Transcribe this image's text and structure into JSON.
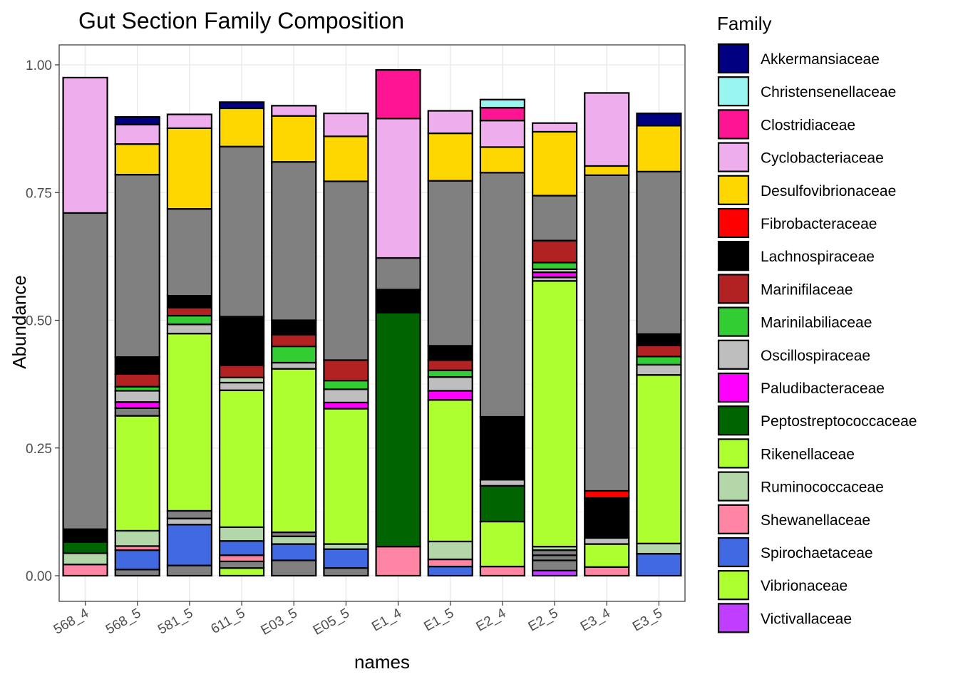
{
  "chart_data": {
    "type": "bar",
    "stacked": true,
    "title": "Gut Section Family Composition",
    "xlabel": "names",
    "ylabel": "Abundance",
    "ylim": [
      0,
      1.0
    ],
    "y_ticks": [
      "0.00",
      "0.25",
      "0.50",
      "0.75",
      "1.00"
    ],
    "grid": true,
    "legend_title": "Family",
    "legend_position": "right",
    "categories": [
      "568_4",
      "568_5",
      "581_5",
      "611_5",
      "E03_5",
      "E05_5",
      "E1_4",
      "E1_5",
      "E2_4",
      "E2_5",
      "E3_4",
      "E3_5"
    ],
    "legend": [
      {
        "name": "Akkermansiaceae",
        "color": "#000080"
      },
      {
        "name": "Christensenellaceae",
        "color": "#98F5F0"
      },
      {
        "name": "Clostridiaceae",
        "color": "#FF1493"
      },
      {
        "name": "Cyclobacteriaceae",
        "color": "#EEAEEE"
      },
      {
        "name": "Desulfovibrionaceae",
        "color": "#FFD700"
      },
      {
        "name": "Fibrobacteraceae",
        "color": "#FF0000"
      },
      {
        "name": "Lachnospiraceae",
        "color": "#000000"
      },
      {
        "name": "Marinifilaceae",
        "color": "#B22222"
      },
      {
        "name": "Marinilabiliaceae",
        "color": "#32CD32"
      },
      {
        "name": "Oscillospiraceae",
        "color": "#BEBEBE"
      },
      {
        "name": "Paludibacteraceae",
        "color": "#FF00FF"
      },
      {
        "name": "Peptostreptococcaceae",
        "color": "#006400"
      },
      {
        "name": "Rikenellaceae",
        "color": "#ADFF2F"
      },
      {
        "name": "Ruminococcaceae",
        "color": "#B4D7AA"
      },
      {
        "name": "Shewanellaceae",
        "color": "#FF85A5"
      },
      {
        "name": "Spirochaetaceae",
        "color": "#4169E1"
      },
      {
        "name": "Vibrionaceae",
        "color": "#ADFF2F"
      },
      {
        "name": "Victivallaceae",
        "color": "#BF3EFF"
      }
    ],
    "other_color": "#808080",
    "segments_note_unlabeled_gray": "Unlisted gray segments drawn in grey",
    "stacks": [
      {
        "category": "568_4",
        "segments": [
          {
            "family": "Shewanellaceae",
            "value": 0.022
          },
          {
            "family": "Ruminococcaceae",
            "value": 0.022
          },
          {
            "family": "Peptostreptococcaceae",
            "value": 0.022
          },
          {
            "family": "Lachnospiraceae",
            "value": 0.025
          },
          {
            "family": "Other",
            "value": 0.619
          },
          {
            "family": "Cyclobacteriaceae",
            "value": 0.265
          }
        ]
      },
      {
        "category": "568_5",
        "segments": [
          {
            "family": "Other",
            "value": 0.012
          },
          {
            "family": "Spirochaetaceae",
            "value": 0.038
          },
          {
            "family": "Shewanellaceae",
            "value": 0.008
          },
          {
            "family": "Ruminococcaceae",
            "value": 0.03
          },
          {
            "family": "Rikenellaceae",
            "value": 0.225
          },
          {
            "family": "Other",
            "value": 0.015
          },
          {
            "family": "Paludibacteraceae",
            "value": 0.012
          },
          {
            "family": "Oscillospiraceae",
            "value": 0.022
          },
          {
            "family": "Marinilabiliaceae",
            "value": 0.008
          },
          {
            "family": "Marinifilaceae",
            "value": 0.025
          },
          {
            "family": "Lachnospiraceae",
            "value": 0.033
          },
          {
            "family": "Other",
            "value": 0.357
          },
          {
            "family": "Desulfovibrionaceae",
            "value": 0.06
          },
          {
            "family": "Cyclobacteriaceae",
            "value": 0.038
          },
          {
            "family": "Akkermansiaceae",
            "value": 0.015
          }
        ]
      },
      {
        "category": "581_5",
        "segments": [
          {
            "family": "Other",
            "value": 0.02
          },
          {
            "family": "Spirochaetaceae",
            "value": 0.08
          },
          {
            "family": "Oscillospiraceae",
            "value": 0.012
          },
          {
            "family": "Other",
            "value": 0.015
          },
          {
            "family": "Rikenellaceae",
            "value": 0.347
          },
          {
            "family": "Oscillospiraceae",
            "value": 0.018
          },
          {
            "family": "Marinilabiliaceae",
            "value": 0.017
          },
          {
            "family": "Marinifilaceae",
            "value": 0.016
          },
          {
            "family": "Lachnospiraceae",
            "value": 0.023
          },
          {
            "family": "Other",
            "value": 0.17
          },
          {
            "family": "Desulfovibrionaceae",
            "value": 0.158
          },
          {
            "family": "Cyclobacteriaceae",
            "value": 0.027
          }
        ]
      },
      {
        "category": "611_5",
        "segments": [
          {
            "family": "Vibrionaceae",
            "value": 0.015
          },
          {
            "family": "Other",
            "value": 0.013
          },
          {
            "family": "Shewanellaceae",
            "value": 0.012
          },
          {
            "family": "Spirochaetaceae",
            "value": 0.028
          },
          {
            "family": "Ruminococcaceae",
            "value": 0.027
          },
          {
            "family": "Rikenellaceae",
            "value": 0.268
          },
          {
            "family": "Oscillospiraceae",
            "value": 0.015
          },
          {
            "family": "Ruminococcaceae",
            "value": 0.01
          },
          {
            "family": "Marinifilaceae",
            "value": 0.024
          },
          {
            "family": "Lachnospiraceae",
            "value": 0.095
          },
          {
            "family": "Other",
            "value": 0.333
          },
          {
            "family": "Desulfovibrionaceae",
            "value": 0.075
          },
          {
            "family": "Akkermansiaceae",
            "value": 0.012
          }
        ]
      },
      {
        "category": "E03_5",
        "segments": [
          {
            "family": "Other",
            "value": 0.03
          },
          {
            "family": "Spirochaetaceae",
            "value": 0.032
          },
          {
            "family": "Ruminococcaceae",
            "value": 0.015
          },
          {
            "family": "Other",
            "value": 0.008
          },
          {
            "family": "Rikenellaceae",
            "value": 0.32
          },
          {
            "family": "Oscillospiraceae",
            "value": 0.012
          },
          {
            "family": "Marinilabiliaceae",
            "value": 0.032
          },
          {
            "family": "Marinifilaceae",
            "value": 0.023
          },
          {
            "family": "Lachnospiraceae",
            "value": 0.028
          },
          {
            "family": "Other",
            "value": 0.31
          },
          {
            "family": "Desulfovibrionaceae",
            "value": 0.09
          },
          {
            "family": "Cyclobacteriaceae",
            "value": 0.02
          }
        ]
      },
      {
        "category": "E05_5",
        "segments": [
          {
            "family": "Other",
            "value": 0.015
          },
          {
            "family": "Spirochaetaceae",
            "value": 0.037
          },
          {
            "family": "Ruminococcaceae",
            "value": 0.01
          },
          {
            "family": "Rikenellaceae",
            "value": 0.265
          },
          {
            "family": "Paludibacteraceae",
            "value": 0.012
          },
          {
            "family": "Oscillospiraceae",
            "value": 0.026
          },
          {
            "family": "Marinilabiliaceae",
            "value": 0.017
          },
          {
            "family": "Marinifilaceae",
            "value": 0.04
          },
          {
            "family": "Other",
            "value": 0.35
          },
          {
            "family": "Desulfovibrionaceae",
            "value": 0.088
          },
          {
            "family": "Cyclobacteriaceae",
            "value": 0.045
          }
        ]
      },
      {
        "category": "E1_4",
        "segments": [
          {
            "family": "Shewanellaceae",
            "value": 0.057
          },
          {
            "family": "Peptostreptococcaceae",
            "value": 0.458
          },
          {
            "family": "Lachnospiraceae",
            "value": 0.045
          },
          {
            "family": "Other",
            "value": 0.062
          },
          {
            "family": "Cyclobacteriaceae",
            "value": 0.273
          },
          {
            "family": "Clostridiaceae",
            "value": 0.095
          }
        ]
      },
      {
        "category": "E1_5",
        "segments": [
          {
            "family": "Spirochaetaceae",
            "value": 0.018
          },
          {
            "family": "Shewanellaceae",
            "value": 0.014
          },
          {
            "family": "Ruminococcaceae",
            "value": 0.035
          },
          {
            "family": "Rikenellaceae",
            "value": 0.277
          },
          {
            "family": "Paludibacteraceae",
            "value": 0.018
          },
          {
            "family": "Oscillospiraceae",
            "value": 0.027
          },
          {
            "family": "Marinilabiliaceae",
            "value": 0.013
          },
          {
            "family": "Marinifilaceae",
            "value": 0.02
          },
          {
            "family": "Lachnospiraceae",
            "value": 0.028
          },
          {
            "family": "Other",
            "value": 0.323
          },
          {
            "family": "Desulfovibrionaceae",
            "value": 0.093
          },
          {
            "family": "Cyclobacteriaceae",
            "value": 0.044
          }
        ]
      },
      {
        "category": "E2_4",
        "segments": [
          {
            "family": "Shewanellaceae",
            "value": 0.018
          },
          {
            "family": "Vibrionaceae",
            "value": 0.088
          },
          {
            "family": "Peptostreptococcaceae",
            "value": 0.07
          },
          {
            "family": "Oscillospiraceae",
            "value": 0.012
          },
          {
            "family": "Lachnospiraceae",
            "value": 0.123
          },
          {
            "family": "Other",
            "value": 0.478
          },
          {
            "family": "Desulfovibrionaceae",
            "value": 0.05
          },
          {
            "family": "Cyclobacteriaceae",
            "value": 0.052
          },
          {
            "family": "Clostridiaceae",
            "value": 0.025
          },
          {
            "family": "Christensenellaceae",
            "value": 0.016
          }
        ]
      },
      {
        "category": "E2_5",
        "segments": [
          {
            "family": "Victivallaceae",
            "value": 0.01
          },
          {
            "family": "Other",
            "value": 0.02
          },
          {
            "family": "Other",
            "value": 0.01
          },
          {
            "family": "Other",
            "value": 0.01
          },
          {
            "family": "Ruminococcaceae",
            "value": 0.007
          },
          {
            "family": "Rikenellaceae",
            "value": 0.52
          },
          {
            "family": "Oscillospiraceae",
            "value": 0.007
          },
          {
            "family": "Paludibacteraceae",
            "value": 0.01
          },
          {
            "family": "Ruminococcaceae",
            "value": 0.006
          },
          {
            "family": "Marinilabiliaceae",
            "value": 0.013
          },
          {
            "family": "Marinifilaceae",
            "value": 0.043
          },
          {
            "family": "Other",
            "value": 0.088
          },
          {
            "family": "Desulfovibrionaceae",
            "value": 0.125
          },
          {
            "family": "Cyclobacteriaceae",
            "value": 0.017
          }
        ]
      },
      {
        "category": "E3_4",
        "segments": [
          {
            "family": "Shewanellaceae",
            "value": 0.017
          },
          {
            "family": "Vibrionaceae",
            "value": 0.045
          },
          {
            "family": "Oscillospiraceae",
            "value": 0.012
          },
          {
            "family": "Lachnospiraceae",
            "value": 0.078
          },
          {
            "family": "Fibrobacteraceae",
            "value": 0.014
          },
          {
            "family": "Other",
            "value": 0.618
          },
          {
            "family": "Desulfovibrionaceae",
            "value": 0.018
          },
          {
            "family": "Cyclobacteriaceae",
            "value": 0.143
          }
        ]
      },
      {
        "category": "E3_5",
        "segments": [
          {
            "family": "Spirochaetaceae",
            "value": 0.043
          },
          {
            "family": "Ruminococcaceae",
            "value": 0.02
          },
          {
            "family": "Rikenellaceae",
            "value": 0.33
          },
          {
            "family": "Oscillospiraceae",
            "value": 0.02
          },
          {
            "family": "Marinilabiliaceae",
            "value": 0.016
          },
          {
            "family": "Marinifilaceae",
            "value": 0.022
          },
          {
            "family": "Lachnospiraceae",
            "value": 0.022
          },
          {
            "family": "Other",
            "value": 0.318
          },
          {
            "family": "Desulfovibrionaceae",
            "value": 0.09
          },
          {
            "family": "Akkermansiaceae",
            "value": 0.024
          }
        ]
      }
    ]
  }
}
